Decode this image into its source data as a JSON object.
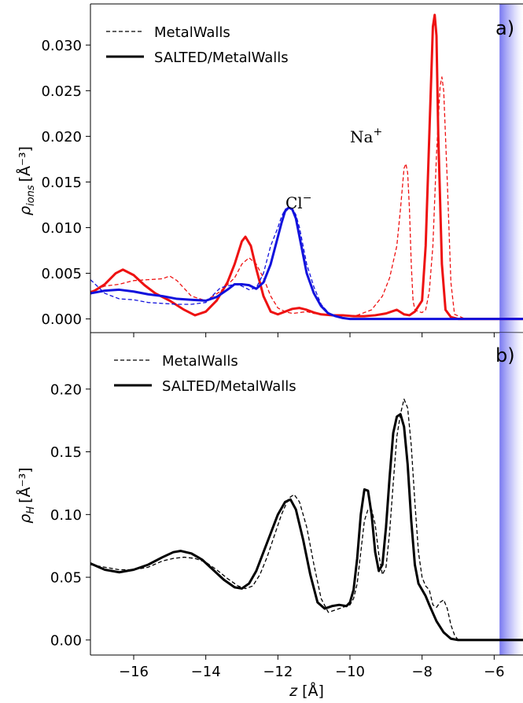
{
  "chart_data": [
    {
      "panel": "a)",
      "type": "line",
      "ylabel_main": "ρ",
      "ylabel_sub": "ions",
      "ylabel_unit": "[Å⁻³]",
      "xlim": [
        -17.2,
        -5.2
      ],
      "ylim": [
        -0.0015,
        0.0345
      ],
      "xticks": [
        -16,
        -14,
        -12,
        -10,
        -8,
        -6
      ],
      "yticks": [
        0.0,
        0.005,
        0.01,
        0.015,
        0.02,
        0.025,
        0.03
      ],
      "ytick_labels": [
        "0.000",
        "0.005",
        "0.010",
        "0.015",
        "0.020",
        "0.025",
        "0.030"
      ],
      "legend": [
        {
          "label": "MetalWalls",
          "style": "dashed"
        },
        {
          "label": "SALTED/MetalWalls",
          "style": "solid"
        }
      ],
      "annotations": [
        {
          "base": "Na",
          "sup": "+",
          "x": -8.2,
          "y": 0.0205
        },
        {
          "base": "Cl",
          "sup": "−",
          "x": -11.5,
          "y": 0.0128
        }
      ],
      "shaded_region_start_x": -5.85,
      "series": [
        {
          "color": "#ee1111",
          "style": "solid",
          "x": [
            -17.2,
            -16.8,
            -16.5,
            -16.3,
            -16.0,
            -15.7,
            -15.4,
            -15.0,
            -14.6,
            -14.3,
            -14.0,
            -13.7,
            -13.4,
            -13.2,
            -13.0,
            -12.9,
            -12.75,
            -12.6,
            -12.4,
            -12.2,
            -12.0,
            -11.8,
            -11.6,
            -11.4,
            -11.2,
            -11.0,
            -10.8,
            -10.5,
            -10.2,
            -9.9,
            -9.6,
            -9.3,
            -9.0,
            -8.7,
            -8.5,
            -8.35,
            -8.2,
            -8.0,
            -7.9,
            -7.8,
            -7.7,
            -7.65,
            -7.6,
            -7.55,
            -7.45,
            -7.35,
            -7.2,
            -7.0,
            -6.5,
            -5.2
          ],
          "y": [
            0.0028,
            0.0038,
            0.005,
            0.0054,
            0.0048,
            0.0037,
            0.0028,
            0.002,
            0.001,
            0.0004,
            0.0008,
            0.002,
            0.004,
            0.006,
            0.0085,
            0.009,
            0.008,
            0.0055,
            0.0025,
            0.0008,
            0.0005,
            0.0008,
            0.0011,
            0.0012,
            0.001,
            0.0007,
            0.0005,
            0.0004,
            0.0004,
            0.0003,
            0.0003,
            0.0004,
            0.0006,
            0.001,
            0.0005,
            0.0004,
            0.0008,
            0.002,
            0.008,
            0.02,
            0.032,
            0.0333,
            0.031,
            0.02,
            0.006,
            0.001,
            0.0002,
            0.0,
            0.0,
            0.0
          ]
        },
        {
          "color": "#ee1111",
          "style": "dashed",
          "x": [
            -17.2,
            -16.8,
            -16.4,
            -16.0,
            -15.6,
            -15.2,
            -15.0,
            -14.8,
            -14.4,
            -14.0,
            -13.6,
            -13.2,
            -13.0,
            -12.8,
            -12.6,
            -12.4,
            -12.2,
            -12.0,
            -11.8,
            -11.6,
            -11.4,
            -11.2,
            -11.0,
            -10.6,
            -10.2,
            -9.8,
            -9.4,
            -9.1,
            -8.9,
            -8.7,
            -8.6,
            -8.5,
            -8.45,
            -8.4,
            -8.35,
            -8.3,
            -8.25,
            -8.2,
            -8.1,
            -8.0,
            -7.9,
            -7.8,
            -7.7,
            -7.6,
            -7.5,
            -7.45,
            -7.4,
            -7.3,
            -7.2,
            -7.1,
            -6.8,
            -5.2
          ],
          "y": [
            0.003,
            0.0036,
            0.0038,
            0.0042,
            0.0043,
            0.0044,
            0.0047,
            0.0042,
            0.0025,
            0.002,
            0.003,
            0.0045,
            0.006,
            0.0067,
            0.006,
            0.0045,
            0.0025,
            0.0012,
            0.0008,
            0.0006,
            0.0007,
            0.0008,
            0.0006,
            0.0004,
            0.0003,
            0.0004,
            0.001,
            0.0025,
            0.0045,
            0.008,
            0.012,
            0.0165,
            0.017,
            0.016,
            0.012,
            0.006,
            0.002,
            0.001,
            0.0008,
            0.0007,
            0.001,
            0.003,
            0.008,
            0.018,
            0.0255,
            0.0265,
            0.025,
            0.015,
            0.004,
            0.0005,
            0.0,
            0.0
          ]
        },
        {
          "color": "#1111dd",
          "style": "solid",
          "x": [
            -17.2,
            -16.8,
            -16.4,
            -16.0,
            -15.6,
            -15.2,
            -14.8,
            -14.4,
            -14.0,
            -13.7,
            -13.4,
            -13.2,
            -13.0,
            -12.8,
            -12.6,
            -12.4,
            -12.2,
            -12.0,
            -11.9,
            -11.8,
            -11.7,
            -11.6,
            -11.5,
            -11.4,
            -11.3,
            -11.2,
            -11.0,
            -10.8,
            -10.6,
            -10.4,
            -10.2,
            -10.0,
            -9.6,
            -9.2,
            -8.8,
            -8.4,
            -8.0,
            -7.6,
            -7.2,
            -6.8,
            -5.2
          ],
          "y": [
            0.0028,
            0.0031,
            0.0032,
            0.003,
            0.0027,
            0.0025,
            0.0022,
            0.0021,
            0.002,
            0.0024,
            0.0032,
            0.0038,
            0.0038,
            0.0037,
            0.0033,
            0.004,
            0.006,
            0.009,
            0.0105,
            0.0118,
            0.0122,
            0.012,
            0.011,
            0.009,
            0.007,
            0.005,
            0.0028,
            0.0014,
            0.0006,
            0.0003,
            0.0001,
            0.0,
            0.0,
            0.0,
            0.0,
            0.0,
            0.0,
            0.0,
            0.0,
            0.0,
            0.0
          ]
        },
        {
          "color": "#1111dd",
          "style": "dashed",
          "x": [
            -17.2,
            -16.8,
            -16.4,
            -16.0,
            -15.6,
            -15.2,
            -14.8,
            -14.4,
            -14.0,
            -13.8,
            -13.6,
            -13.4,
            -13.2,
            -13.0,
            -12.8,
            -12.6,
            -12.4,
            -12.2,
            -12.0,
            -11.9,
            -11.8,
            -11.7,
            -11.6,
            -11.5,
            -11.4,
            -11.3,
            -11.2,
            -11.0,
            -10.8,
            -10.6,
            -10.4,
            -10.2,
            -10.0,
            -9.6,
            -9.2,
            -8.8,
            -8.4,
            -8.0,
            -7.6,
            -7.2,
            -6.8,
            -5.2
          ],
          "y": [
            0.0043,
            0.0028,
            0.0022,
            0.0021,
            0.0018,
            0.0017,
            0.0016,
            0.0016,
            0.0018,
            0.0026,
            0.0034,
            0.0036,
            0.0038,
            0.0036,
            0.0032,
            0.0034,
            0.005,
            0.008,
            0.01,
            0.0112,
            0.012,
            0.0122,
            0.0121,
            0.0114,
            0.01,
            0.008,
            0.006,
            0.0035,
            0.0016,
            0.0007,
            0.0003,
            0.0001,
            0.0,
            0.0,
            0.0,
            0.0,
            0.0,
            0.0,
            0.0,
            0.0,
            0.0,
            0.0
          ]
        }
      ]
    },
    {
      "panel": "b)",
      "type": "line",
      "ylabel_main": "ρ",
      "ylabel_sub": "H",
      "ylabel_unit": "[Å⁻³]",
      "xlabel_main": "z",
      "xlabel_unit": "[Å]",
      "xlim": [
        -17.2,
        -5.2
      ],
      "ylim": [
        -0.012,
        0.245
      ],
      "xticks": [
        -16,
        -14,
        -12,
        -10,
        -8,
        -6
      ],
      "xtick_labels": [
        "−16",
        "−14",
        "−12",
        "−10",
        "−8",
        "−6"
      ],
      "yticks": [
        0.0,
        0.05,
        0.1,
        0.15,
        0.2
      ],
      "ytick_labels": [
        "0.00",
        "0.05",
        "0.10",
        "0.15",
        "0.20"
      ],
      "legend": [
        {
          "label": "MetalWalls",
          "style": "dashed"
        },
        {
          "label": "SALTED/MetalWalls",
          "style": "solid"
        }
      ],
      "shaded_region_start_x": -5.85,
      "series": [
        {
          "color": "#000000",
          "style": "solid",
          "x": [
            -17.2,
            -16.8,
            -16.4,
            -16.0,
            -15.6,
            -15.2,
            -14.9,
            -14.7,
            -14.4,
            -14.1,
            -13.8,
            -13.5,
            -13.2,
            -13.0,
            -12.8,
            -12.6,
            -12.4,
            -12.2,
            -12.0,
            -11.8,
            -11.65,
            -11.5,
            -11.3,
            -11.1,
            -10.9,
            -10.7,
            -10.5,
            -10.3,
            -10.1,
            -10.0,
            -9.9,
            -9.8,
            -9.7,
            -9.6,
            -9.5,
            -9.4,
            -9.3,
            -9.2,
            -9.1,
            -9.0,
            -8.9,
            -8.8,
            -8.7,
            -8.6,
            -8.5,
            -8.4,
            -8.3,
            -8.2,
            -8.1,
            -8.0,
            -7.9,
            -7.8,
            -7.6,
            -7.4,
            -7.2,
            -7.0,
            -6.0,
            -5.2
          ],
          "y": [
            0.061,
            0.056,
            0.054,
            0.056,
            0.06,
            0.066,
            0.07,
            0.071,
            0.069,
            0.064,
            0.056,
            0.048,
            0.042,
            0.041,
            0.045,
            0.055,
            0.07,
            0.085,
            0.1,
            0.11,
            0.112,
            0.104,
            0.08,
            0.052,
            0.03,
            0.025,
            0.027,
            0.028,
            0.027,
            0.03,
            0.04,
            0.065,
            0.1,
            0.12,
            0.119,
            0.1,
            0.07,
            0.055,
            0.06,
            0.09,
            0.13,
            0.165,
            0.178,
            0.18,
            0.17,
            0.14,
            0.095,
            0.06,
            0.045,
            0.04,
            0.035,
            0.028,
            0.015,
            0.006,
            0.001,
            0.0,
            0.0,
            0.0
          ]
        },
        {
          "color": "#000000",
          "style": "dashed",
          "x": [
            -17.2,
            -16.8,
            -16.4,
            -16.0,
            -15.6,
            -15.2,
            -14.9,
            -14.6,
            -14.3,
            -14.0,
            -13.7,
            -13.4,
            -13.1,
            -12.9,
            -12.7,
            -12.5,
            -12.3,
            -12.1,
            -11.9,
            -11.7,
            -11.55,
            -11.4,
            -11.2,
            -11.0,
            -10.8,
            -10.6,
            -10.4,
            -10.2,
            -10.0,
            -9.9,
            -9.8,
            -9.7,
            -9.6,
            -9.5,
            -9.4,
            -9.3,
            -9.2,
            -9.1,
            -9.0,
            -8.9,
            -8.8,
            -8.7,
            -8.6,
            -8.5,
            -8.4,
            -8.3,
            -8.2,
            -8.1,
            -8.0,
            -7.9,
            -7.8,
            -7.7,
            -7.6,
            -7.5,
            -7.4,
            -7.3,
            -7.2,
            -7.1,
            -7.0,
            -6.0,
            -5.2
          ],
          "y": [
            0.06,
            0.058,
            0.056,
            0.056,
            0.058,
            0.063,
            0.065,
            0.066,
            0.065,
            0.062,
            0.056,
            0.049,
            0.043,
            0.041,
            0.043,
            0.052,
            0.066,
            0.083,
            0.1,
            0.113,
            0.116,
            0.11,
            0.09,
            0.06,
            0.033,
            0.022,
            0.024,
            0.026,
            0.028,
            0.033,
            0.045,
            0.07,
            0.095,
            0.104,
            0.104,
            0.092,
            0.068,
            0.052,
            0.058,
            0.086,
            0.125,
            0.162,
            0.18,
            0.192,
            0.185,
            0.155,
            0.11,
            0.07,
            0.05,
            0.043,
            0.04,
            0.028,
            0.026,
            0.03,
            0.032,
            0.025,
            0.012,
            0.004,
            0.0,
            0.0,
            0.0
          ]
        }
      ]
    }
  ]
}
